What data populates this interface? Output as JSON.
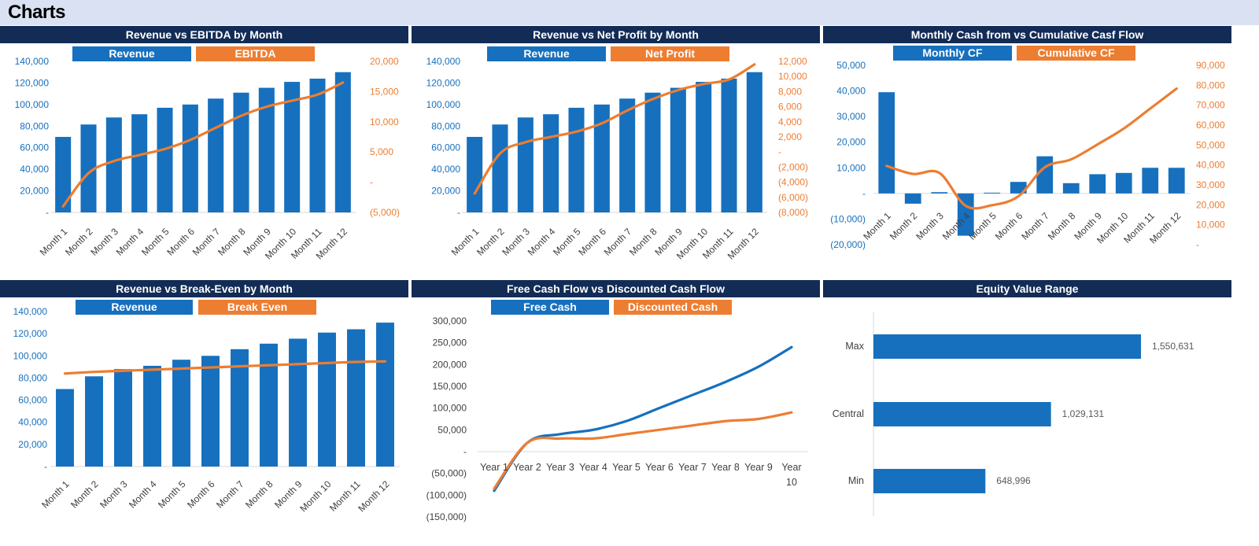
{
  "page": {
    "title": "Charts"
  },
  "colors": {
    "blue": "#1670be",
    "orange": "#ed7d31",
    "title_bar": "#132c56",
    "header_bg": "#dae1f2"
  },
  "panels": [
    {
      "title": "Revenue vs EBITDA by Month",
      "legend": [
        "Revenue",
        "EBITDA"
      ]
    },
    {
      "title": "Revenue vs Net Profit by Month",
      "legend": [
        "Revenue",
        "Net Profit"
      ]
    },
    {
      "title": "Monthly Cash from vs Cumulative Casf Flow",
      "legend": [
        "Monthly CF",
        "Cumulative CF"
      ]
    },
    {
      "title": "Revenue vs Break-Even by Month",
      "legend": [
        "Revenue",
        "Break Even"
      ]
    },
    {
      "title": "Free Cash Flow vs Discounted Cash Flow",
      "legend": [
        "Free Cash",
        "Discounted Cash"
      ]
    },
    {
      "title": "Equity Value Range",
      "legend": []
    }
  ],
  "chart_data": [
    {
      "type": "bar",
      "title": "Revenue vs EBITDA by Month",
      "categories": [
        "Month 1",
        "Month 2",
        "Month 3",
        "Month 4",
        "Month 5",
        "Month 6",
        "Month 7",
        "Month 8",
        "Month 9",
        "Month 10",
        "Month 11",
        "Month 12"
      ],
      "y_ticks": [
        "140,000",
        "120,000",
        "100,000",
        "80,000",
        "60,000",
        "40,000",
        "20,000",
        "-"
      ],
      "y2_ticks": [
        "20,000",
        "15,000",
        "10,000",
        "5,000",
        "-",
        "(5,000)"
      ],
      "ylim": [
        0,
        140000
      ],
      "y2lim": [
        -5000,
        20000
      ],
      "series": [
        {
          "name": "Revenue",
          "axis": "primary",
          "type": "bar",
          "values": [
            70000,
            81500,
            88000,
            91000,
            97000,
            100000,
            105500,
            111000,
            115500,
            121000,
            124000,
            130000
          ]
        },
        {
          "name": "EBITDA",
          "axis": "secondary",
          "type": "line",
          "values": [
            -4000,
            1500,
            3500,
            4500,
            5500,
            7000,
            9000,
            11000,
            12500,
            13500,
            14500,
            16500
          ]
        }
      ]
    },
    {
      "type": "bar",
      "title": "Revenue vs Net Profit by Month",
      "categories": [
        "Month 1",
        "Month 2",
        "Month 3",
        "Month 4",
        "Month 5",
        "Month 6",
        "Month 7",
        "Month 8",
        "Month 9",
        "Month 10",
        "Month 11",
        "Month 12"
      ],
      "y_ticks": [
        "140,000",
        "120,000",
        "100,000",
        "80,000",
        "60,000",
        "40,000",
        "20,000",
        "-"
      ],
      "y2_ticks": [
        "12,000",
        "10,000",
        "8,000",
        "6,000",
        "4,000",
        "2,000",
        "-",
        "(2,000)",
        "(4,000)",
        "(6,000)",
        "(8,000)"
      ],
      "ylim": [
        0,
        140000
      ],
      "y2lim": [
        -8000,
        12000
      ],
      "series": [
        {
          "name": "Revenue",
          "axis": "primary",
          "type": "bar",
          "values": [
            70000,
            81500,
            88000,
            91000,
            97000,
            100000,
            105500,
            111000,
            115500,
            121000,
            124000,
            130000
          ]
        },
        {
          "name": "Net Profit",
          "axis": "secondary",
          "type": "line",
          "values": [
            -5500,
            -200,
            1300,
            2000,
            2700,
            3800,
            5500,
            7000,
            8200,
            9000,
            9600,
            11600
          ]
        }
      ]
    },
    {
      "type": "bar",
      "title": "Monthly Cash from vs Cumulative Casf Flow",
      "categories": [
        "Month 1",
        "Month 2",
        "Month 3",
        "Month 4",
        "Month 5",
        "Month 6",
        "Month 7",
        "Month 8",
        "Month 9",
        "Month 10",
        "Month 11",
        "Month 12"
      ],
      "y_ticks": [
        "50,000",
        "40,000",
        "30,000",
        "20,000",
        "10,000",
        "-",
        "(10,000)",
        "(20,000)"
      ],
      "y2_ticks": [
        "90,000",
        "80,000",
        "70,000",
        "60,000",
        "50,000",
        "40,000",
        "30,000",
        "20,000",
        "10,000",
        "-"
      ],
      "ylim": [
        -20000,
        50000
      ],
      "y2lim": [
        0,
        90000
      ],
      "series": [
        {
          "name": "Monthly CF",
          "axis": "primary",
          "type": "bar",
          "values": [
            39500,
            -4000,
            500,
            -16500,
            300,
            4500,
            14500,
            4000,
            7500,
            8000,
            10000,
            10000
          ]
        },
        {
          "name": "Cumulative CF",
          "axis": "secondary",
          "type": "line",
          "values": [
            39500,
            35500,
            36000,
            19500,
            19800,
            24300,
            38800,
            42800,
            50300,
            58300,
            68300,
            78300
          ]
        }
      ]
    },
    {
      "type": "bar",
      "title": "Revenue vs Break-Even by Month",
      "categories": [
        "Month 1",
        "Month 2",
        "Month 3",
        "Month 4",
        "Month 5",
        "Month 6",
        "Month 7",
        "Month 8",
        "Month 9",
        "Month 10",
        "Month 11",
        "Month 12"
      ],
      "y_ticks": [
        "140,000",
        "120,000",
        "100,000",
        "80,000",
        "60,000",
        "40,000",
        "20,000",
        "-"
      ],
      "ylim": [
        0,
        140000
      ],
      "series": [
        {
          "name": "Revenue",
          "axis": "primary",
          "type": "bar",
          "values": [
            70000,
            81500,
            88000,
            91000,
            96500,
            100000,
            106000,
            111000,
            115500,
            121000,
            124000,
            130000
          ]
        },
        {
          "name": "Break Even",
          "axis": "primary",
          "type": "line",
          "values": [
            84000,
            85500,
            86500,
            87500,
            88500,
            89500,
            90500,
            91500,
            92500,
            93500,
            94500,
            95000
          ]
        }
      ]
    },
    {
      "type": "line",
      "title": "Free Cash Flow vs Discounted Cash Flow",
      "categories": [
        "Year 1",
        "Year 2",
        "Year 3",
        "Year 4",
        "Year 5",
        "Year 6",
        "Year 7",
        "Year 8",
        "Year 9",
        "Year 10"
      ],
      "y_ticks": [
        "300,000",
        "250,000",
        "200,000",
        "150,000",
        "100,000",
        "50,000",
        "-",
        "(50,000)",
        "(100,000)",
        "(150,000)"
      ],
      "ylim": [
        -150000,
        300000
      ],
      "series": [
        {
          "name": "Free Cash",
          "values": [
            -90000,
            20000,
            40000,
            50000,
            70000,
            100000,
            130000,
            160000,
            195000,
            240000
          ]
        },
        {
          "name": "Discounted Cash",
          "values": [
            -85000,
            20000,
            30000,
            30000,
            40000,
            50000,
            60000,
            70000,
            75000,
            90000
          ]
        }
      ]
    },
    {
      "type": "bar",
      "orientation": "horizontal",
      "title": "Equity Value Range",
      "categories": [
        "Max",
        "Central",
        "Min"
      ],
      "values": [
        1550631,
        1029131,
        648996
      ],
      "labels": [
        "1,550,631",
        "1,029,131",
        "648,996"
      ]
    }
  ]
}
